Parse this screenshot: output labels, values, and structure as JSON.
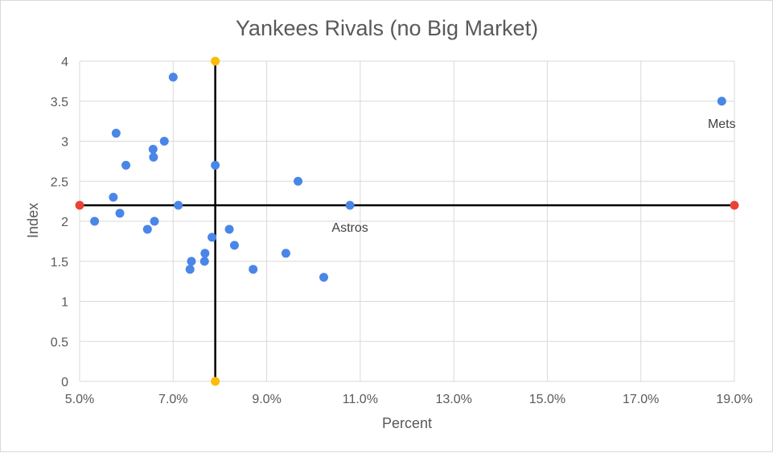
{
  "chart_data": {
    "type": "scatter",
    "title": "Yankees Rivals (no Big Market)",
    "xlabel": "Percent",
    "ylabel": "Index",
    "xlim": [
      0.05,
      0.19
    ],
    "ylim": [
      0,
      4
    ],
    "x_ticks": [
      0.05,
      0.07,
      0.09,
      0.11,
      0.13,
      0.15,
      0.17,
      0.19
    ],
    "x_tick_labels": [
      "5.0%",
      "7.0%",
      "9.0%",
      "11.0%",
      "13.0%",
      "15.0%",
      "17.0%",
      "19.0%"
    ],
    "y_ticks": [
      0,
      0.5,
      1,
      1.5,
      2,
      2.5,
      3,
      3.5,
      4
    ],
    "y_tick_labels": [
      "0",
      "0.5",
      "1",
      "1.5",
      "2",
      "2.5",
      "3",
      "3.5",
      "4"
    ],
    "grid": true,
    "colors": {
      "points": "#4a86e8",
      "crosshair": "#000000",
      "horizontal_endpoints": "#ea4335",
      "vertical_endpoints": "#fbbc04",
      "grid": "#d9d9d9",
      "text": "#595959"
    },
    "series": [
      {
        "values": [
          {
            "x": 0.0532,
            "y": 2.0
          },
          {
            "x": 0.0572,
            "y": 2.3
          },
          {
            "x": 0.0578,
            "y": 3.1
          },
          {
            "x": 0.0586,
            "y": 2.1
          },
          {
            "x": 0.0599,
            "y": 2.7
          },
          {
            "x": 0.0645,
            "y": 1.9
          },
          {
            "x": 0.0657,
            "y": 2.9
          },
          {
            "x": 0.0658,
            "y": 2.8
          },
          {
            "x": 0.066,
            "y": 2.0
          },
          {
            "x": 0.0681,
            "y": 3.0
          },
          {
            "x": 0.07,
            "y": 3.8
          },
          {
            "x": 0.0711,
            "y": 2.2
          },
          {
            "x": 0.0736,
            "y": 1.4
          },
          {
            "x": 0.0739,
            "y": 1.5
          },
          {
            "x": 0.0767,
            "y": 1.5
          },
          {
            "x": 0.0768,
            "y": 1.6
          },
          {
            "x": 0.0783,
            "y": 1.8
          },
          {
            "x": 0.079,
            "y": 2.7
          },
          {
            "x": 0.082,
            "y": 1.9
          },
          {
            "x": 0.0831,
            "y": 1.7
          },
          {
            "x": 0.0871,
            "y": 1.4
          },
          {
            "x": 0.0941,
            "y": 1.6
          },
          {
            "x": 0.0967,
            "y": 2.5
          },
          {
            "x": 0.1022,
            "y": 1.3
          },
          {
            "x": 0.1078,
            "y": 2.2
          },
          {
            "x": 0.1873,
            "y": 3.5
          }
        ]
      }
    ],
    "reference_lines": {
      "horizontal": {
        "y": 2.2,
        "x_from": 0.05,
        "x_to": 0.19
      },
      "vertical": {
        "x": 0.079,
        "y_from": 0,
        "y_to": 4
      }
    },
    "annotations": [
      {
        "text": "Mets",
        "x": 0.1873,
        "y": 3.5
      },
      {
        "text": "Astros",
        "x": 0.1078,
        "y": 2.2
      }
    ]
  }
}
